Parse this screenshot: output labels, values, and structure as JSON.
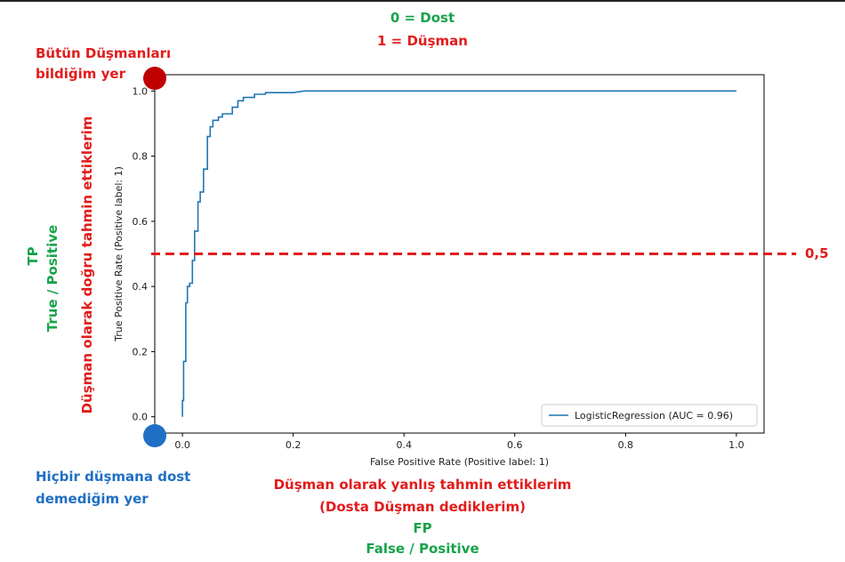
{
  "annotations": {
    "legend_line1": "0 = Dost",
    "legend_line2": "1 = Düşman",
    "top_left_line1": "Bütün Düşmanları",
    "top_left_line2": "bildiğim yer",
    "bottom_left_line1": "Hiçbir düşmana dost",
    "bottom_left_line2": "demediğim yer",
    "left_tp": "TP",
    "left_true_positive": "True / Positive",
    "left_red_vertical": "Düşman olarak doğru tahmin ettiklerim",
    "bottom_red_line1": "Düşman olarak yanlış tahmin ettiklerim",
    "bottom_red_line2": "(Dosta Düşman dediklerim)",
    "bottom_fp": "FP",
    "bottom_false_positive": "False / Positive",
    "threshold_label": "0,5"
  },
  "colors": {
    "green": "#16a34a",
    "red": "#e21b1b",
    "dark_red": "#c00000",
    "blue": "#1f6fc4",
    "series": "#1f77b4"
  },
  "chart_data": {
    "type": "line",
    "xlabel": "False Positive Rate (Positive label: 1)",
    "ylabel": "True Positive Rate (Positive label: 1)",
    "xlim": [
      -0.05,
      1.05
    ],
    "ylim": [
      -0.05,
      1.05
    ],
    "xticks": [
      "0.0",
      "0.2",
      "0.4",
      "0.6",
      "0.8",
      "1.0"
    ],
    "yticks": [
      "0.0",
      "0.2",
      "0.4",
      "0.6",
      "0.8",
      "1.0"
    ],
    "legend": "LogisticRegression (AUC = 0.96)",
    "legend_position": "lower-right",
    "grid": false,
    "threshold_y": 0.5,
    "series": [
      {
        "name": "LogisticRegression (AUC = 0.96)",
        "x": [
          0.0,
          0.0,
          0.002,
          0.002,
          0.006,
          0.006,
          0.009,
          0.009,
          0.013,
          0.013,
          0.018,
          0.018,
          0.022,
          0.022,
          0.028,
          0.028,
          0.032,
          0.032,
          0.038,
          0.038,
          0.045,
          0.045,
          0.05,
          0.05,
          0.055,
          0.055,
          0.06,
          0.06,
          0.065,
          0.065,
          0.072,
          0.072,
          0.09,
          0.09,
          0.1,
          0.1,
          0.11,
          0.11,
          0.13,
          0.13,
          0.15,
          0.15,
          0.2,
          0.22,
          0.36,
          1.0
        ],
        "y": [
          0.0,
          0.05,
          0.05,
          0.17,
          0.17,
          0.35,
          0.35,
          0.4,
          0.4,
          0.41,
          0.41,
          0.48,
          0.48,
          0.57,
          0.57,
          0.66,
          0.66,
          0.69,
          0.69,
          0.76,
          0.76,
          0.86,
          0.86,
          0.89,
          0.89,
          0.91,
          0.91,
          0.91,
          0.91,
          0.92,
          0.92,
          0.93,
          0.93,
          0.95,
          0.95,
          0.97,
          0.97,
          0.98,
          0.98,
          0.99,
          0.99,
          0.995,
          0.995,
          1.0,
          1.0,
          1.0
        ]
      }
    ]
  }
}
